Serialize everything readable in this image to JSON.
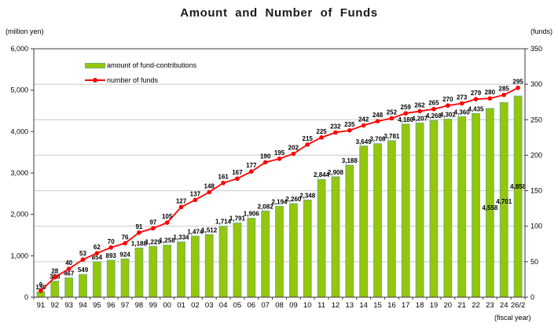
{
  "title": "Amount and Number of Funds",
  "left_axis_unit": "(million yen)",
  "right_axis_unit": "(funds)",
  "x_axis_unit": "(fiscal year)",
  "legend": {
    "bar_label": "amount of fund-contributions",
    "line_label": "number of funds"
  },
  "colors": {
    "bar_fill": "#94C70A",
    "bar_border": "#6FAF7E",
    "line": "#FF0000",
    "grid": "#C8C8C8",
    "axis": "#3A3A3A",
    "text": "#000000"
  },
  "chart_data": {
    "type": "bar",
    "subtype": "bar+line combo, dual axis",
    "title": "Amount and Number of Funds",
    "xlabel": "(fiscal year)",
    "categories": [
      "91",
      "92",
      "93",
      "94",
      "95",
      "96",
      "97",
      "98",
      "99",
      "00",
      "01",
      "02",
      "03",
      "04",
      "05",
      "06",
      "07",
      "08",
      "09",
      "10",
      "11",
      "12",
      "13",
      "14",
      "15",
      "16",
      "17",
      "18",
      "19",
      "20",
      "21",
      "22",
      "23",
      "24",
      "26/2"
    ],
    "series": [
      {
        "name": "amount of fund-contributions",
        "type": "bar",
        "axis": "left",
        "unit": "million yen",
        "values": [
          130,
          388,
          467,
          549,
          854,
          893,
          924,
          1188,
          1229,
          1258,
          1334,
          1474,
          1512,
          1714,
          1791,
          1906,
          2082,
          2194,
          2260,
          2348,
          2844,
          2908,
          3188,
          3649,
          3708,
          3781,
          4180,
          4207,
          4268,
          4302,
          4360,
          4435,
          4558,
          4701,
          4858
        ]
      },
      {
        "name": "number of funds",
        "type": "line",
        "axis": "right",
        "unit": "funds",
        "values": [
          9,
          28,
          40,
          53,
          62,
          70,
          76,
          91,
          97,
          105,
          127,
          137,
          148,
          161,
          167,
          177,
          190,
          195,
          202,
          215,
          225,
          232,
          235,
          242,
          248,
          252,
          259,
          262,
          265,
          270,
          273,
          279,
          280,
          285,
          295
        ]
      }
    ],
    "left_axis": {
      "label": "(million yen)",
      "min": 0,
      "max": 6000,
      "tick_step": 1000
    },
    "right_axis": {
      "label": "(funds)",
      "min": 0,
      "max": 350,
      "tick_step": 50
    },
    "grid": "horizontal gridlines at right-axis intervals (every 50 funds)",
    "legend_position": "inside top-left",
    "data_labels": "all points labeled",
    "bar_label_y_overrides": {
      "32": 267,
      "33": 259,
      "34": 240
    }
  }
}
